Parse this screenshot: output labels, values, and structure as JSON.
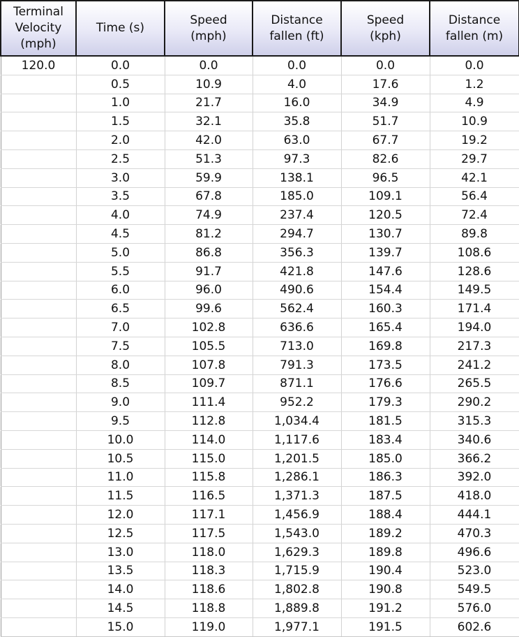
{
  "table": {
    "headers": [
      "Terminal\nVelocity\n(mph)",
      "Time (s)",
      "Speed\n(mph)",
      "Distance\nfallen (ft)",
      "Speed\n(kph)",
      "Distance\nfallen (m)"
    ],
    "rows": [
      [
        "120.0",
        "0.0",
        "0.0",
        "0.0",
        "0.0",
        "0.0"
      ],
      [
        "",
        "0.5",
        "10.9",
        "4.0",
        "17.6",
        "1.2"
      ],
      [
        "",
        "1.0",
        "21.7",
        "16.0",
        "34.9",
        "4.9"
      ],
      [
        "",
        "1.5",
        "32.1",
        "35.8",
        "51.7",
        "10.9"
      ],
      [
        "",
        "2.0",
        "42.0",
        "63.0",
        "67.7",
        "19.2"
      ],
      [
        "",
        "2.5",
        "51.3",
        "97.3",
        "82.6",
        "29.7"
      ],
      [
        "",
        "3.0",
        "59.9",
        "138.1",
        "96.5",
        "42.1"
      ],
      [
        "",
        "3.5",
        "67.8",
        "185.0",
        "109.1",
        "56.4"
      ],
      [
        "",
        "4.0",
        "74.9",
        "237.4",
        "120.5",
        "72.4"
      ],
      [
        "",
        "4.5",
        "81.2",
        "294.7",
        "130.7",
        "89.8"
      ],
      [
        "",
        "5.0",
        "86.8",
        "356.3",
        "139.7",
        "108.6"
      ],
      [
        "",
        "5.5",
        "91.7",
        "421.8",
        "147.6",
        "128.6"
      ],
      [
        "",
        "6.0",
        "96.0",
        "490.6",
        "154.4",
        "149.5"
      ],
      [
        "",
        "6.5",
        "99.6",
        "562.4",
        "160.3",
        "171.4"
      ],
      [
        "",
        "7.0",
        "102.8",
        "636.6",
        "165.4",
        "194.0"
      ],
      [
        "",
        "7.5",
        "105.5",
        "713.0",
        "169.8",
        "217.3"
      ],
      [
        "",
        "8.0",
        "107.8",
        "791.3",
        "173.5",
        "241.2"
      ],
      [
        "",
        "8.5",
        "109.7",
        "871.1",
        "176.6",
        "265.5"
      ],
      [
        "",
        "9.0",
        "111.4",
        "952.2",
        "179.3",
        "290.2"
      ],
      [
        "",
        "9.5",
        "112.8",
        "1,034.4",
        "181.5",
        "315.3"
      ],
      [
        "",
        "10.0",
        "114.0",
        "1,117.6",
        "183.4",
        "340.6"
      ],
      [
        "",
        "10.5",
        "115.0",
        "1,201.5",
        "185.0",
        "366.2"
      ],
      [
        "",
        "11.0",
        "115.8",
        "1,286.1",
        "186.3",
        "392.0"
      ],
      [
        "",
        "11.5",
        "116.5",
        "1,371.3",
        "187.5",
        "418.0"
      ],
      [
        "",
        "12.0",
        "117.1",
        "1,456.9",
        "188.4",
        "444.1"
      ],
      [
        "",
        "12.5",
        "117.5",
        "1,543.0",
        "189.2",
        "470.3"
      ],
      [
        "",
        "13.0",
        "118.0",
        "1,629.3",
        "189.8",
        "496.6"
      ],
      [
        "",
        "13.5",
        "118.3",
        "1,715.9",
        "190.4",
        "523.0"
      ],
      [
        "",
        "14.0",
        "118.6",
        "1,802.8",
        "190.8",
        "549.5"
      ],
      [
        "",
        "14.5",
        "118.8",
        "1,889.8",
        "191.2",
        "576.0"
      ],
      [
        "",
        "15.0",
        "119.0",
        "1,977.1",
        "191.5",
        "602.6"
      ]
    ]
  },
  "colors": {
    "header_gradient_top": "#ffffff",
    "header_gradient_bottom": "#cfd0ea",
    "header_border": "#1a1a1a",
    "grid_line": "#d2d2d2"
  }
}
